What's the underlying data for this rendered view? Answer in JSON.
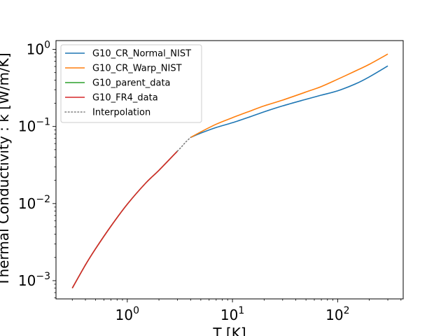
{
  "chart_data": {
    "type": "line",
    "xlabel": "T [K]",
    "ylabel": "Thermal Conductivity : k [W/m/K]",
    "xscale": "log",
    "yscale": "log",
    "xlim": [
      0.21,
      420
    ],
    "ylim": [
      0.00058,
      1.3
    ],
    "grid": false,
    "legend_placement": "top-left",
    "x_ticks": [
      {
        "base": "10",
        "exp": "0",
        "value": 1
      },
      {
        "base": "10",
        "exp": "1",
        "value": 10
      },
      {
        "base": "10",
        "exp": "2",
        "value": 100
      }
    ],
    "y_ticks": [
      {
        "base": "10",
        "exp": "−3",
        "value": 0.001
      },
      {
        "base": "10",
        "exp": "−2",
        "value": 0.01
      },
      {
        "base": "10",
        "exp": "−1",
        "value": 0.1
      },
      {
        "base": "10",
        "exp": "0",
        "value": 1
      }
    ],
    "series": [
      {
        "name": "G10_CR_Normal_NIST",
        "color": "#1f77b4",
        "style": "solid",
        "x": [
          4,
          5,
          7,
          10,
          15,
          20,
          30,
          50,
          70,
          100,
          150,
          200,
          300
        ],
        "y": [
          0.072,
          0.082,
          0.097,
          0.112,
          0.135,
          0.155,
          0.185,
          0.225,
          0.255,
          0.29,
          0.36,
          0.44,
          0.61
        ]
      },
      {
        "name": "G10_CR_Warp_NIST",
        "color": "#ff7f0e",
        "style": "solid",
        "x": [
          4,
          5,
          7,
          10,
          15,
          20,
          30,
          50,
          70,
          100,
          150,
          200,
          300
        ],
        "y": [
          0.072,
          0.085,
          0.107,
          0.13,
          0.16,
          0.185,
          0.22,
          0.28,
          0.33,
          0.41,
          0.53,
          0.64,
          0.87
        ]
      },
      {
        "name": "G10_parent_data",
        "color": "#2ca02c",
        "style": "solid",
        "x": [
          0.3,
          0.4,
          0.5,
          0.7,
          1,
          1.5,
          2,
          3
        ],
        "y": [
          0.0008,
          0.0016,
          0.0026,
          0.0051,
          0.0098,
          0.0185,
          0.027,
          0.048
        ]
      },
      {
        "name": "G10_FR4_data",
        "color": "#d62728",
        "style": "solid",
        "x": [
          0.3,
          0.4,
          0.5,
          0.7,
          1,
          1.5,
          2,
          3
        ],
        "y": [
          0.0008,
          0.0016,
          0.0026,
          0.0051,
          0.0098,
          0.0185,
          0.027,
          0.048
        ]
      },
      {
        "name": "Interpolation",
        "color": "#7f7f7f",
        "style": "dotted",
        "x": [
          3,
          3.3,
          3.6,
          4
        ],
        "y": [
          0.048,
          0.055,
          0.063,
          0.072
        ]
      }
    ]
  }
}
